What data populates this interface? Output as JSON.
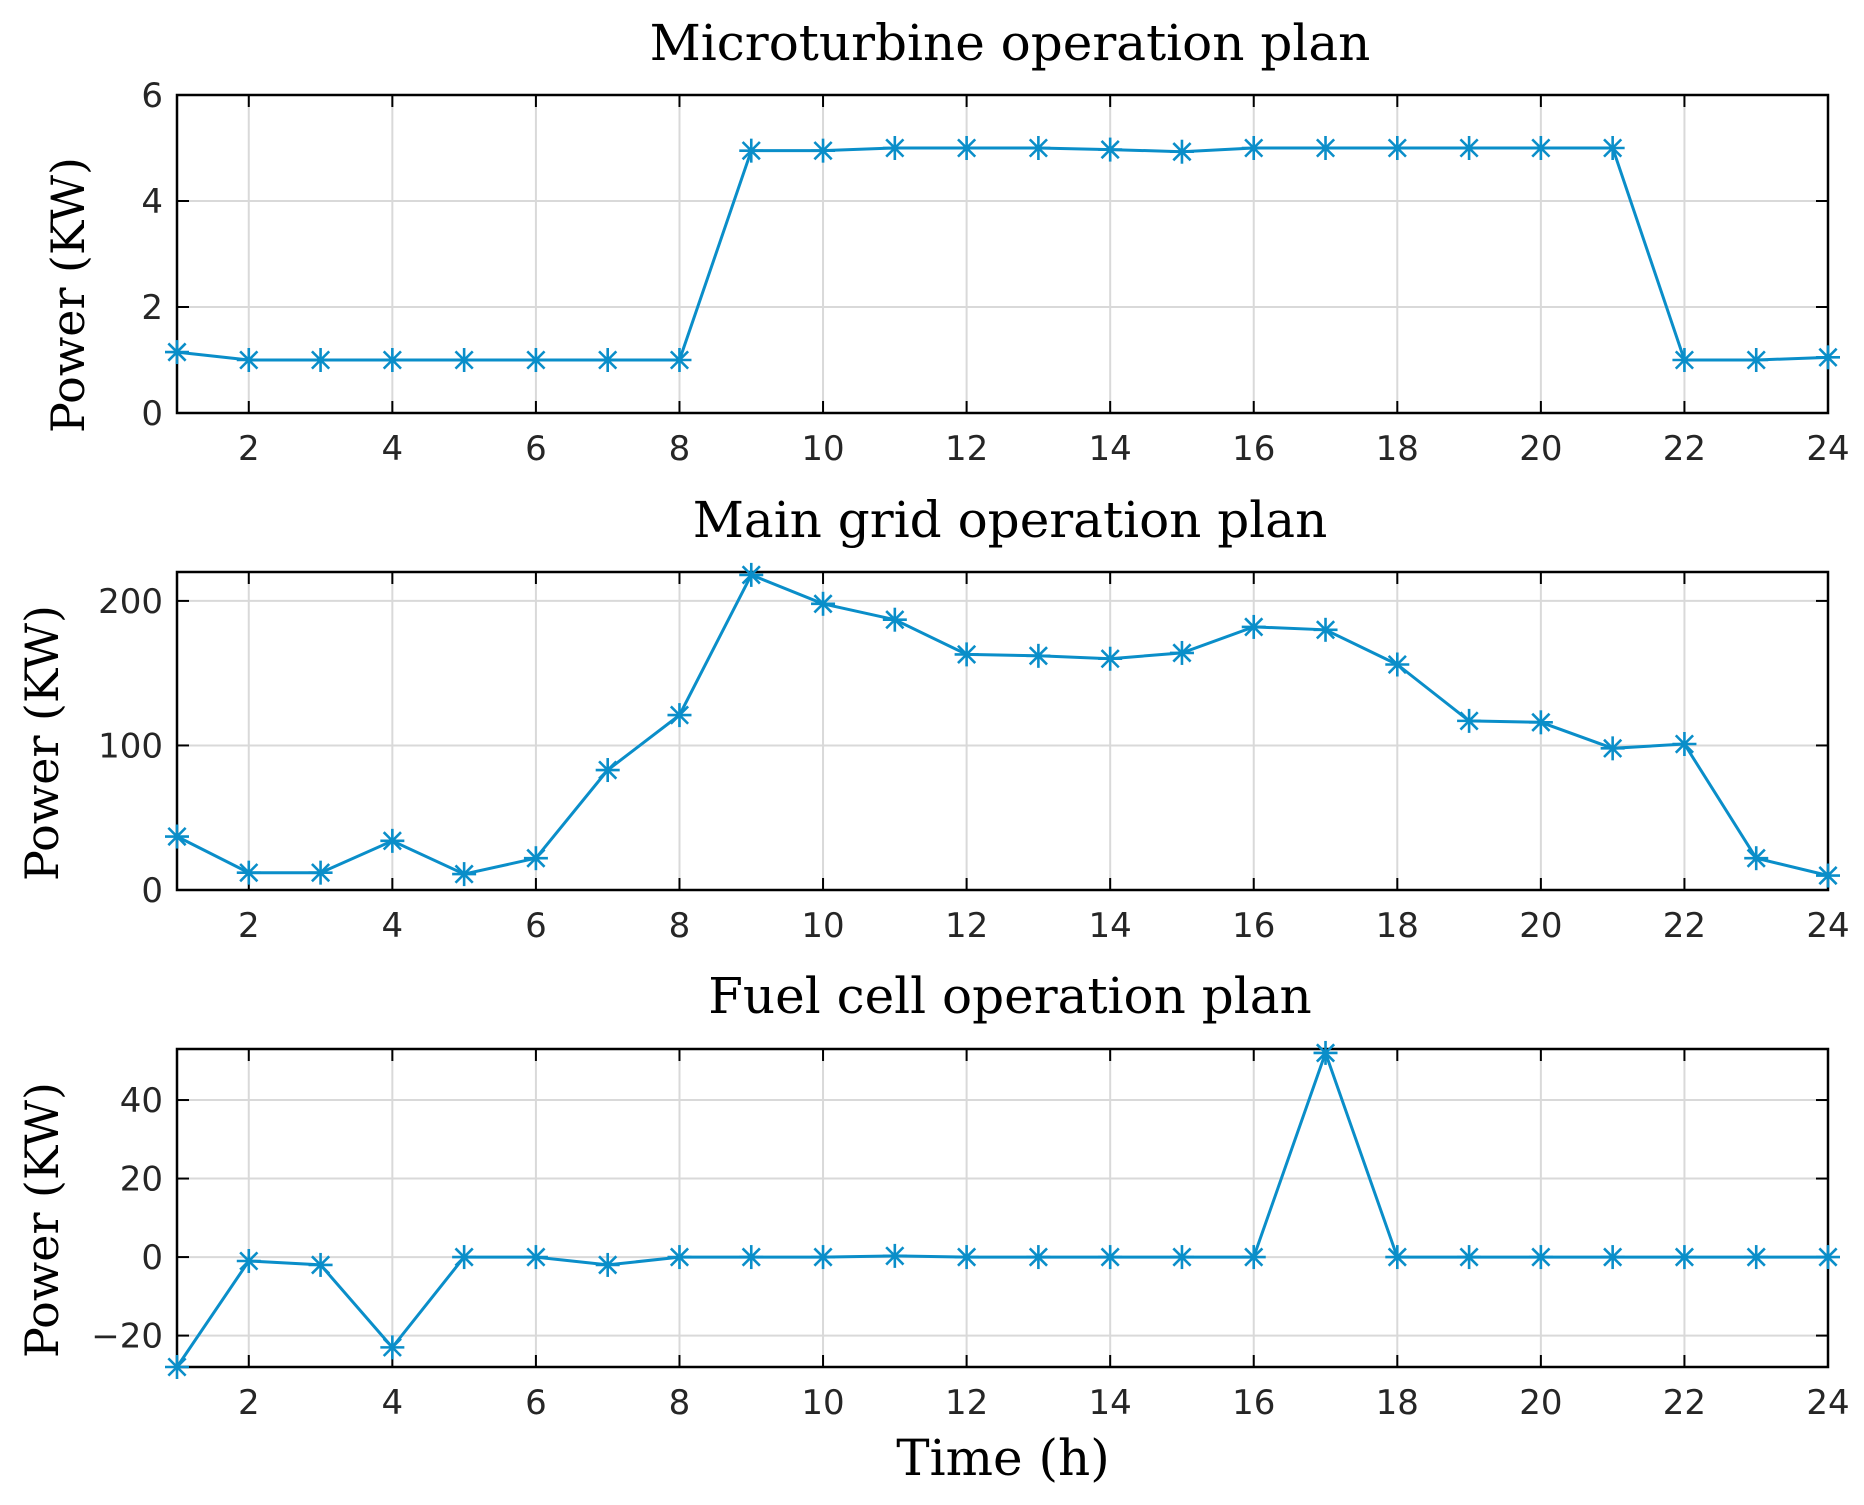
{
  "chart_data": [
    {
      "type": "line",
      "title": "Microturbine operation plan",
      "ylabel": "Power (KW)",
      "xlabel": "",
      "xlim": [
        1,
        24
      ],
      "ylim": [
        0,
        6
      ],
      "xticks": [
        2,
        4,
        6,
        8,
        10,
        12,
        14,
        16,
        18,
        20,
        22,
        24
      ],
      "yticks": [
        0,
        2,
        4,
        6
      ],
      "grid": true,
      "series": [
        {
          "name": "Microturbine",
          "color": "#0a8ec9",
          "marker": "asterisk",
          "x": [
            1,
            2,
            3,
            4,
            5,
            6,
            7,
            8,
            9,
            10,
            11,
            12,
            13,
            14,
            15,
            16,
            17,
            18,
            19,
            20,
            21,
            22,
            23,
            24
          ],
          "values": [
            1.15,
            1,
            1,
            1,
            1,
            1,
            1,
            1,
            4.95,
            4.95,
            5,
            5,
            5,
            4.97,
            4.93,
            5,
            5,
            5,
            5,
            5,
            5,
            1,
            1,
            1.05
          ]
        }
      ]
    },
    {
      "type": "line",
      "title": "Main grid operation plan",
      "ylabel": "Power (KW)",
      "xlabel": "",
      "xlim": [
        1,
        24
      ],
      "ylim": [
        0,
        220
      ],
      "xticks": [
        2,
        4,
        6,
        8,
        10,
        12,
        14,
        16,
        18,
        20,
        22,
        24
      ],
      "yticks": [
        0,
        100,
        200
      ],
      "grid": true,
      "series": [
        {
          "name": "Main grid",
          "color": "#0a8ec9",
          "marker": "asterisk",
          "x": [
            1,
            2,
            3,
            4,
            5,
            6,
            7,
            8,
            9,
            10,
            11,
            12,
            13,
            14,
            15,
            16,
            17,
            18,
            19,
            20,
            21,
            22,
            23,
            24
          ],
          "values": [
            37,
            12,
            12,
            34,
            11,
            22,
            83,
            121,
            218,
            198,
            187,
            163,
            162,
            160,
            164,
            182,
            180,
            156,
            117,
            116,
            98,
            101,
            22,
            10
          ]
        }
      ]
    },
    {
      "type": "line",
      "title": "Fuel cell operation plan",
      "ylabel": "Power (KW)",
      "xlabel": "Time (h)",
      "xlim": [
        1,
        24
      ],
      "ylim": [
        -28,
        53
      ],
      "xticks": [
        2,
        4,
        6,
        8,
        10,
        12,
        14,
        16,
        18,
        20,
        22,
        24
      ],
      "yticks": [
        -20,
        0,
        20,
        40
      ],
      "grid": true,
      "series": [
        {
          "name": "Fuel cell",
          "color": "#0a8ec9",
          "marker": "asterisk",
          "x": [
            1,
            2,
            3,
            4,
            5,
            6,
            7,
            8,
            9,
            10,
            11,
            12,
            13,
            14,
            15,
            16,
            17,
            18,
            19,
            20,
            21,
            22,
            23,
            24
          ],
          "values": [
            -28,
            -1,
            -2,
            -23,
            0,
            0,
            -2,
            0,
            0,
            0,
            0.3,
            0,
            0,
            0,
            0,
            0,
            52,
            0,
            0,
            0,
            0,
            0,
            0,
            0
          ]
        }
      ]
    }
  ]
}
